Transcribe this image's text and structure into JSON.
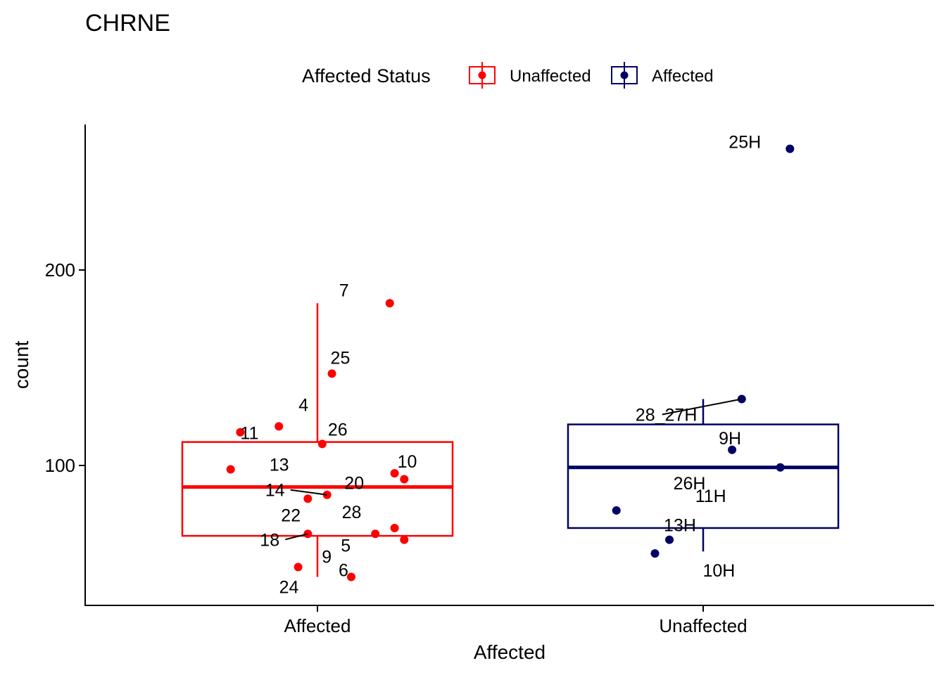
{
  "chart_data": {
    "type": "boxplot",
    "title": "CHRNE",
    "xlabel": "Affected",
    "ylabel": "count",
    "ylim": [
      32,
      272
    ],
    "yticks": [
      100,
      200
    ],
    "categories": [
      "Affected",
      "Unaffected"
    ],
    "grid": false,
    "legend": {
      "title": "Affected Status",
      "position": "top",
      "entries": [
        {
          "label": "Unaffected",
          "color": "#ff0000"
        },
        {
          "label": "Affected",
          "color": "#000066"
        }
      ]
    },
    "boxes": [
      {
        "category": "Affected",
        "group": "Unaffected",
        "color": "#ff0000",
        "whisker_low": 43,
        "q1": 64,
        "median": 89,
        "q3": 112,
        "whisker_high": 183
      },
      {
        "category": "Unaffected",
        "group": "Affected",
        "color": "#000066",
        "whisker_low": 56,
        "q1": 68,
        "median": 99,
        "q3": 121,
        "whisker_high": 134
      }
    ],
    "points": [
      {
        "category": "Affected",
        "jitter": 0.15,
        "y": 183,
        "label": "7"
      },
      {
        "category": "Affected",
        "jitter": 0.03,
        "y": 147,
        "label": "25"
      },
      {
        "category": "Affected",
        "jitter": -0.08,
        "y": 120,
        "label": "4"
      },
      {
        "category": "Affected",
        "jitter": -0.16,
        "y": 117,
        "label": "11"
      },
      {
        "category": "Affected",
        "jitter": 0.01,
        "y": 111,
        "label": "26"
      },
      {
        "category": "Affected",
        "jitter": -0.18,
        "y": 98,
        "label": "13"
      },
      {
        "category": "Affected",
        "jitter": 0.16,
        "y": 96,
        "label": "10"
      },
      {
        "category": "Affected",
        "jitter": 0.18,
        "y": 93,
        "label": "20"
      },
      {
        "category": "Affected",
        "jitter": 0.02,
        "y": 85,
        "label": "14"
      },
      {
        "category": "Affected",
        "jitter": -0.02,
        "y": 83,
        "label": "22"
      },
      {
        "category": "Affected",
        "jitter": 0.16,
        "y": 68,
        "label": "28"
      },
      {
        "category": "Affected",
        "jitter": 0.12,
        "y": 65,
        "label": "5"
      },
      {
        "category": "Affected",
        "jitter": -0.02,
        "y": 65,
        "label": "18"
      },
      {
        "category": "Affected",
        "jitter": 0.18,
        "y": 62,
        "label": "9"
      },
      {
        "category": "Affected",
        "jitter": -0.04,
        "y": 48,
        "label": "24"
      },
      {
        "category": "Affected",
        "jitter": 0.07,
        "y": 43,
        "label": "6"
      },
      {
        "category": "Unaffected",
        "jitter": 0.18,
        "y": 262,
        "label": "25H"
      },
      {
        "category": "Unaffected",
        "jitter": 0.08,
        "y": 134,
        "label": "28_27H"
      },
      {
        "category": "Unaffected",
        "jitter": 0.06,
        "y": 108,
        "label": "9H"
      },
      {
        "category": "Unaffected",
        "jitter": 0.16,
        "y": 99,
        "label": "26H"
      },
      {
        "category": "Unaffected",
        "jitter": -0.18,
        "y": 77,
        "label": "11H"
      },
      {
        "category": "Unaffected",
        "jitter": -0.07,
        "y": 62,
        "label": "13H"
      },
      {
        "category": "Unaffected",
        "jitter": -0.1,
        "y": 55,
        "label": "10H"
      }
    ]
  }
}
